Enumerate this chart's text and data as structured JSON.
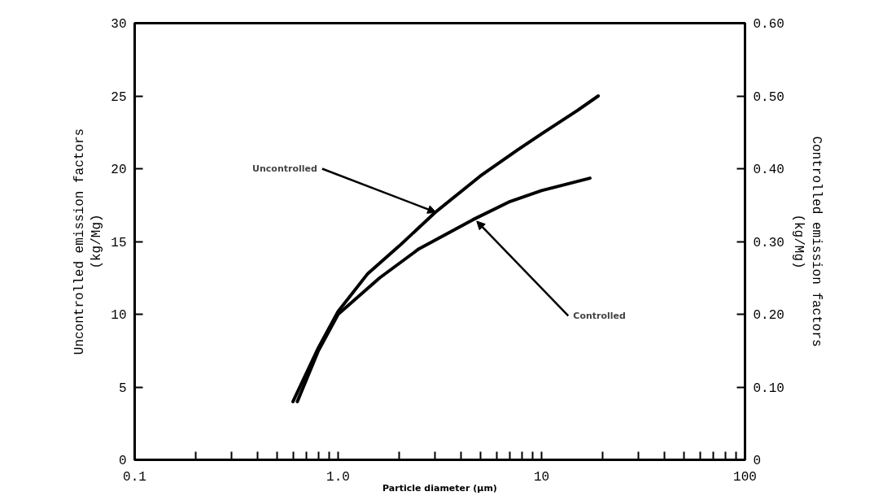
{
  "chart_data": {
    "type": "line",
    "xlabel": "Particle diameter (µm)",
    "ylabel": "Uncontrolled emission factors\n(kg/Mg)",
    "y2label": "Controlled emission factors\n(kg/Mg)",
    "log": "x",
    "grid": false,
    "line_style": "solid",
    "marker": "none",
    "xlim": [
      0.1,
      100
    ],
    "ylim": [
      0,
      30
    ],
    "y2lim": [
      0,
      0.6
    ],
    "xticks": [
      {
        "value": 0.1,
        "label": "0.1"
      },
      {
        "value": 0.2,
        "label": null
      },
      {
        "value": 0.3,
        "label": null
      },
      {
        "value": 0.4,
        "label": null
      },
      {
        "value": 0.5,
        "label": null
      },
      {
        "value": 0.6,
        "label": null
      },
      {
        "value": 0.7,
        "label": null
      },
      {
        "value": 0.8,
        "label": null
      },
      {
        "value": 0.9,
        "label": null
      },
      {
        "value": 1,
        "label": "1.0"
      },
      {
        "value": 2,
        "label": null
      },
      {
        "value": 3,
        "label": null
      },
      {
        "value": 4,
        "label": null
      },
      {
        "value": 5,
        "label": null
      },
      {
        "value": 6,
        "label": null
      },
      {
        "value": 7,
        "label": null
      },
      {
        "value": 8,
        "label": null
      },
      {
        "value": 9,
        "label": null
      },
      10,
      {
        "value": 20,
        "label": null
      },
      {
        "value": 30,
        "label": null
      },
      {
        "value": 40,
        "label": null
      },
      {
        "value": 50,
        "label": null
      },
      {
        "value": 60,
        "label": null
      },
      {
        "value": 70,
        "label": null
      },
      {
        "value": 80,
        "label": null
      },
      {
        "value": 90,
        "label": null
      },
      100
    ],
    "yticks": [
      0,
      5,
      10,
      15,
      20,
      25,
      30
    ],
    "y2ticks": [
      0,
      {
        "value": 0.1,
        "label": "0.10"
      },
      {
        "value": 0.2,
        "label": "0.20"
      },
      {
        "value": 0.3,
        "label": "0.30"
      },
      {
        "value": 0.4,
        "label": "0.40"
      },
      {
        "value": 0.5,
        "label": "0.50"
      },
      {
        "value": 0.6,
        "label": "0.60"
      }
    ],
    "series": [
      {
        "color": "#000000",
        "x": [
          0.6,
          0.8,
          1.0,
          1.4,
          2,
          3,
          5,
          7.65,
          10,
          15,
          19
        ],
        "values": [
          4,
          7.7,
          10.2,
          12.8,
          14.7,
          17,
          19.5,
          21.3,
          22.4,
          24,
          25
        ]
      },
      {
        "color": "#000000",
        "axis": "y2",
        "x": [
          0.63,
          0.8,
          1.0,
          1.6,
          2.5,
          4.6,
          7,
          10,
          17.3
        ],
        "values": [
          0.08,
          0.15,
          0.2,
          0.25,
          0.29,
          0.33,
          0.355,
          0.37,
          0.387
        ]
      }
    ],
    "annotations": [
      {
        "text": "Uncontrolled",
        "x": 3.03,
        "y": 17
      },
      {
        "text": "Controlled",
        "x": 4.8,
        "y": 16.4
      }
    ]
  }
}
